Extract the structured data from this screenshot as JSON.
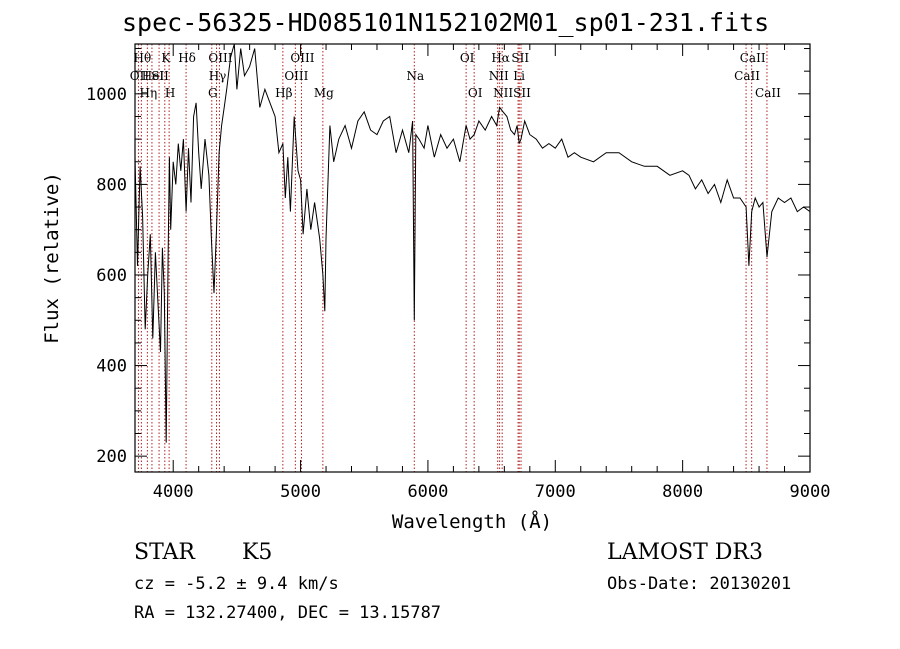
{
  "chart_data": {
    "type": "line",
    "title": "spec-56325-HD085101N152102M01_sp01-231.fits",
    "xlabel": "Wavelength (Å)",
    "ylabel": "Flux (relative)",
    "xlim": [
      3700,
      9000
    ],
    "ylim": [
      165,
      1110
    ],
    "xticks": [
      4000,
      5000,
      6000,
      7000,
      8000,
      9000
    ],
    "yticks": [
      200,
      400,
      600,
      800,
      1000
    ],
    "grid": false,
    "line_color": "#000000",
    "marker_color": "#b22222",
    "series": [
      {
        "x": [
          3700,
          3720,
          3740,
          3760,
          3780,
          3800,
          3820,
          3840,
          3860,
          3880,
          3900,
          3915,
          3930,
          3945,
          3960,
          3970,
          3980,
          4000,
          4020,
          4040,
          4060,
          4080,
          4101,
          4120,
          4140,
          4160,
          4180,
          4200,
          4220,
          4250,
          4280,
          4300,
          4320,
          4340,
          4360,
          4380,
          4400,
          4420,
          4450,
          4480,
          4500,
          4530,
          4560,
          4600,
          4640,
          4680,
          4720,
          4760,
          4800,
          4830,
          4861,
          4880,
          4900,
          4920,
          4950,
          4980,
          5000,
          5020,
          5050,
          5080,
          5110,
          5150,
          5175,
          5190,
          5200,
          5230,
          5260,
          5300,
          5350,
          5400,
          5450,
          5500,
          5550,
          5600,
          5650,
          5700,
          5750,
          5800,
          5850,
          5880,
          5893,
          5905,
          5930,
          5970,
          6000,
          6050,
          6100,
          6150,
          6200,
          6250,
          6300,
          6330,
          6363,
          6400,
          6450,
          6500,
          6540,
          6563,
          6590,
          6620,
          6650,
          6680,
          6700,
          6717,
          6731,
          6760,
          6800,
          6850,
          6900,
          6950,
          7000,
          7050,
          7100,
          7150,
          7200,
          7300,
          7400,
          7500,
          7600,
          7700,
          7800,
          7900,
          8000,
          8050,
          8100,
          8150,
          8200,
          8250,
          8300,
          8350,
          8400,
          8450,
          8498,
          8520,
          8542,
          8570,
          8600,
          8630,
          8662,
          8700,
          8750,
          8800,
          8850,
          8900,
          8950,
          9000
        ],
        "values": [
          860,
          620,
          840,
          730,
          480,
          600,
          690,
          460,
          650,
          540,
          430,
          660,
          560,
          230,
          640,
          860,
          700,
          850,
          800,
          890,
          830,
          900,
          740,
          880,
          760,
          950,
          980,
          870,
          790,
          900,
          820,
          680,
          560,
          700,
          870,
          930,
          970,
          1010,
          1080,
          1140,
          1010,
          1100,
          1040,
          1060,
          1100,
          970,
          1010,
          980,
          950,
          870,
          890,
          770,
          860,
          740,
          950,
          830,
          810,
          690,
          790,
          700,
          760,
          680,
          600,
          520,
          680,
          930,
          850,
          900,
          930,
          880,
          940,
          960,
          920,
          910,
          940,
          950,
          870,
          920,
          870,
          940,
          500,
          910,
          900,
          880,
          930,
          860,
          910,
          880,
          900,
          850,
          930,
          900,
          910,
          940,
          920,
          950,
          930,
          970,
          960,
          950,
          920,
          910,
          930,
          890,
          900,
          940,
          910,
          900,
          880,
          890,
          880,
          900,
          860,
          870,
          860,
          850,
          870,
          870,
          850,
          840,
          840,
          820,
          830,
          820,
          790,
          810,
          780,
          800,
          760,
          810,
          770,
          770,
          750,
          620,
          740,
          770,
          750,
          760,
          640,
          740,
          770,
          760,
          770,
          740,
          750,
          740
        ]
      }
    ],
    "markers": [
      {
        "wavelength": 3750,
        "label": "Hθ",
        "row": 0
      },
      {
        "wavelength": 3727,
        "label": "OII",
        "row": 1
      },
      {
        "wavelength": 3797,
        "label": "Hη",
        "row": 2
      },
      {
        "wavelength": 3833,
        "label": "HeI",
        "row": 1
      },
      {
        "wavelength": 3889,
        "label": "SII",
        "row": 1
      },
      {
        "wavelength": 3934,
        "label": "K",
        "row": 0
      },
      {
        "wavelength": 3968,
        "label": "H",
        "row": 2
      },
      {
        "wavelength": 4101,
        "label": "Hδ",
        "row": 0
      },
      {
        "wavelength": 4303,
        "label": "G",
        "row": 2
      },
      {
        "wavelength": 4340,
        "label": "Hγ",
        "row": 1
      },
      {
        "wavelength": 4363,
        "label": "OIII",
        "row": 0
      },
      {
        "wavelength": 4861,
        "label": "Hβ",
        "row": 2
      },
      {
        "wavelength": 4959,
        "label": "OIII",
        "row": 1
      },
      {
        "wavelength": 5007,
        "label": "OIII",
        "row": 0
      },
      {
        "wavelength": 5175,
        "label": "Mg",
        "row": 2
      },
      {
        "wavelength": 5893,
        "label": "Na",
        "row": 1
      },
      {
        "wavelength": 6300,
        "label": "OI",
        "row": 0
      },
      {
        "wavelength": 6363,
        "label": "OI",
        "row": 2
      },
      {
        "wavelength": 6548,
        "label": "NII",
        "row": 1
      },
      {
        "wavelength": 6563,
        "label": "Hα",
        "row": 0
      },
      {
        "wavelength": 6583,
        "label": "NII",
        "row": 2
      },
      {
        "wavelength": 6708,
        "label": "Li",
        "row": 1
      },
      {
        "wavelength": 6717,
        "label": "SII",
        "row": 0
      },
      {
        "wavelength": 6731,
        "label": "SII",
        "row": 2
      },
      {
        "wavelength": 8498,
        "label": "CaII",
        "row": 1
      },
      {
        "wavelength": 8542,
        "label": "CaII",
        "row": 0
      },
      {
        "wavelength": 8662,
        "label": "CaII",
        "row": 2
      }
    ]
  },
  "info": {
    "object_class": "STAR",
    "subclass": "K5",
    "survey": "LAMOST DR3",
    "velocity": "cz = -5.2 ± 9.4 km/s",
    "obs_date": "Obs-Date: 20130201",
    "coords": "RA = 132.27400, DEC =  13.15787"
  }
}
